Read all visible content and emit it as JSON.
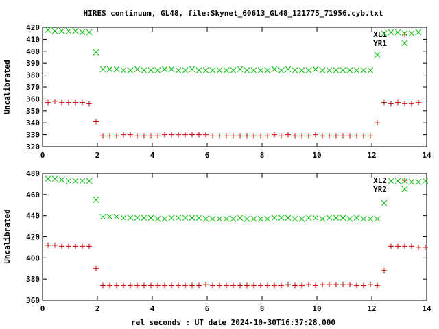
{
  "title": "HIRES continuum, GL48, file:Skynet_60613_GL48_121775_71956.cyb.txt",
  "xlabel": "rel seconds : UT date 2024-10-30T16:37:28.000",
  "colors": {
    "series_1": "#cc0000",
    "series_2": "#00bb00",
    "axis": "#000000"
  },
  "chart_data": [
    {
      "type": "scatter",
      "title": "HIRES continuum, GL48, file:Skynet_60613_GL48_121775_71956.cyb.txt",
      "xlabel": "",
      "ylabel": "Uncalibrated",
      "xlim": [
        0,
        14
      ],
      "ylim": [
        320,
        420
      ],
      "xticks": [
        0,
        2,
        4,
        6,
        8,
        10,
        12,
        14
      ],
      "yticks": [
        320,
        330,
        340,
        350,
        360,
        370,
        380,
        390,
        400,
        410,
        420
      ],
      "grid": false,
      "legend_position": "top-right",
      "series": [
        {
          "name": "XL1",
          "marker": "plus",
          "color": "#cc0000",
          "x": [
            0.2,
            0.45,
            0.7,
            0.95,
            1.2,
            1.45,
            1.7,
            1.95,
            2.2,
            2.45,
            2.7,
            2.95,
            3.2,
            3.45,
            3.7,
            3.95,
            4.2,
            4.45,
            4.7,
            4.95,
            5.2,
            5.45,
            5.7,
            5.95,
            6.2,
            6.45,
            6.7,
            6.95,
            7.2,
            7.45,
            7.7,
            7.95,
            8.2,
            8.45,
            8.7,
            8.95,
            9.2,
            9.45,
            9.7,
            9.95,
            10.2,
            10.45,
            10.7,
            10.95,
            11.2,
            11.45,
            11.7,
            11.95,
            12.2,
            12.45,
            12.7,
            12.95,
            13.2,
            13.45,
            13.7,
            13.95
          ],
          "y": [
            357,
            358,
            357,
            357,
            357,
            357,
            356,
            341,
            329,
            329,
            329,
            330,
            330,
            329,
            329,
            329,
            329,
            330,
            330,
            330,
            330,
            330,
            330,
            330,
            329,
            329,
            329,
            329,
            329,
            329,
            329,
            329,
            329,
            330,
            329,
            330,
            329,
            329,
            329,
            330,
            329,
            329,
            329,
            329,
            329,
            329,
            329,
            329,
            340,
            357,
            356,
            357,
            356,
            356,
            357,
            null
          ]
        },
        {
          "name": "YR1",
          "marker": "cross",
          "color": "#00bb00",
          "x": [
            0.2,
            0.45,
            0.7,
            0.95,
            1.2,
            1.45,
            1.7,
            1.95,
            2.2,
            2.45,
            2.7,
            2.95,
            3.2,
            3.45,
            3.7,
            3.95,
            4.2,
            4.45,
            4.7,
            4.95,
            5.2,
            5.45,
            5.7,
            5.95,
            6.2,
            6.45,
            6.7,
            6.95,
            7.2,
            7.45,
            7.7,
            7.95,
            8.2,
            8.45,
            8.7,
            8.95,
            9.2,
            9.45,
            9.7,
            9.95,
            10.2,
            10.45,
            10.7,
            10.95,
            11.2,
            11.45,
            11.7,
            11.95,
            12.2,
            12.45,
            12.7,
            12.95,
            13.2,
            13.45,
            13.7,
            13.95
          ],
          "y": [
            418,
            417,
            417,
            417,
            417,
            416,
            416,
            399,
            385,
            385,
            385,
            384,
            384,
            385,
            384,
            384,
            384,
            385,
            385,
            384,
            384,
            385,
            384,
            384,
            384,
            384,
            384,
            384,
            385,
            384,
            384,
            384,
            384,
            385,
            384,
            385,
            384,
            384,
            384,
            385,
            384,
            384,
            384,
            384,
            384,
            384,
            384,
            384,
            397,
            415,
            416,
            416,
            415,
            415,
            416,
            null
          ]
        }
      ]
    },
    {
      "type": "scatter",
      "title": "",
      "xlabel": "rel seconds : UT date 2024-10-30T16:37:28.000",
      "ylabel": "Uncalibrated",
      "xlim": [
        0,
        14
      ],
      "ylim": [
        360,
        480
      ],
      "xticks": [
        0,
        2,
        4,
        6,
        8,
        10,
        12,
        14
      ],
      "yticks": [
        360,
        380,
        400,
        420,
        440,
        460,
        480
      ],
      "grid": false,
      "legend_position": "top-right",
      "series": [
        {
          "name": "XL2",
          "marker": "plus",
          "color": "#cc0000",
          "x": [
            0.2,
            0.45,
            0.7,
            0.95,
            1.2,
            1.45,
            1.7,
            1.95,
            2.2,
            2.45,
            2.7,
            2.95,
            3.2,
            3.45,
            3.7,
            3.95,
            4.2,
            4.45,
            4.7,
            4.95,
            5.2,
            5.45,
            5.7,
            5.95,
            6.2,
            6.45,
            6.7,
            6.95,
            7.2,
            7.45,
            7.7,
            7.95,
            8.2,
            8.45,
            8.7,
            8.95,
            9.2,
            9.45,
            9.7,
            9.95,
            10.2,
            10.45,
            10.7,
            10.95,
            11.2,
            11.45,
            11.7,
            11.95,
            12.2,
            12.45,
            12.7,
            12.95,
            13.2,
            13.45,
            13.7,
            13.95
          ],
          "y": [
            412,
            412,
            411,
            411,
            411,
            411,
            411,
            390,
            374,
            374,
            374,
            374,
            374,
            374,
            374,
            374,
            374,
            374,
            374,
            374,
            374,
            374,
            374,
            375,
            374,
            374,
            374,
            374,
            374,
            374,
            374,
            374,
            374,
            374,
            374,
            375,
            374,
            374,
            375,
            374,
            375,
            375,
            375,
            375,
            375,
            374,
            374,
            375,
            374,
            388,
            411,
            411,
            411,
            411,
            410,
            410
          ]
        },
        {
          "name": "YR2",
          "marker": "cross",
          "color": "#00bb00",
          "x": [
            0.2,
            0.45,
            0.7,
            0.95,
            1.2,
            1.45,
            1.7,
            1.95,
            2.2,
            2.45,
            2.7,
            2.95,
            3.2,
            3.45,
            3.7,
            3.95,
            4.2,
            4.45,
            4.7,
            4.95,
            5.2,
            5.45,
            5.7,
            5.95,
            6.2,
            6.45,
            6.7,
            6.95,
            7.2,
            7.45,
            7.7,
            7.95,
            8.2,
            8.45,
            8.7,
            8.95,
            9.2,
            9.45,
            9.7,
            9.95,
            10.2,
            10.45,
            10.7,
            10.95,
            11.2,
            11.45,
            11.7,
            11.95,
            12.2,
            12.45,
            12.7,
            12.95,
            13.2,
            13.45,
            13.7,
            13.95
          ],
          "y": [
            475,
            475,
            474,
            473,
            473,
            473,
            473,
            455,
            439,
            439,
            439,
            438,
            438,
            438,
            438,
            438,
            437,
            437,
            438,
            438,
            438,
            438,
            438,
            437,
            437,
            437,
            437,
            437,
            438,
            437,
            437,
            437,
            437,
            438,
            438,
            438,
            437,
            437,
            438,
            438,
            437,
            438,
            438,
            438,
            437,
            438,
            437,
            437,
            437,
            452,
            473,
            473,
            473,
            472,
            472,
            473
          ]
        }
      ]
    }
  ]
}
